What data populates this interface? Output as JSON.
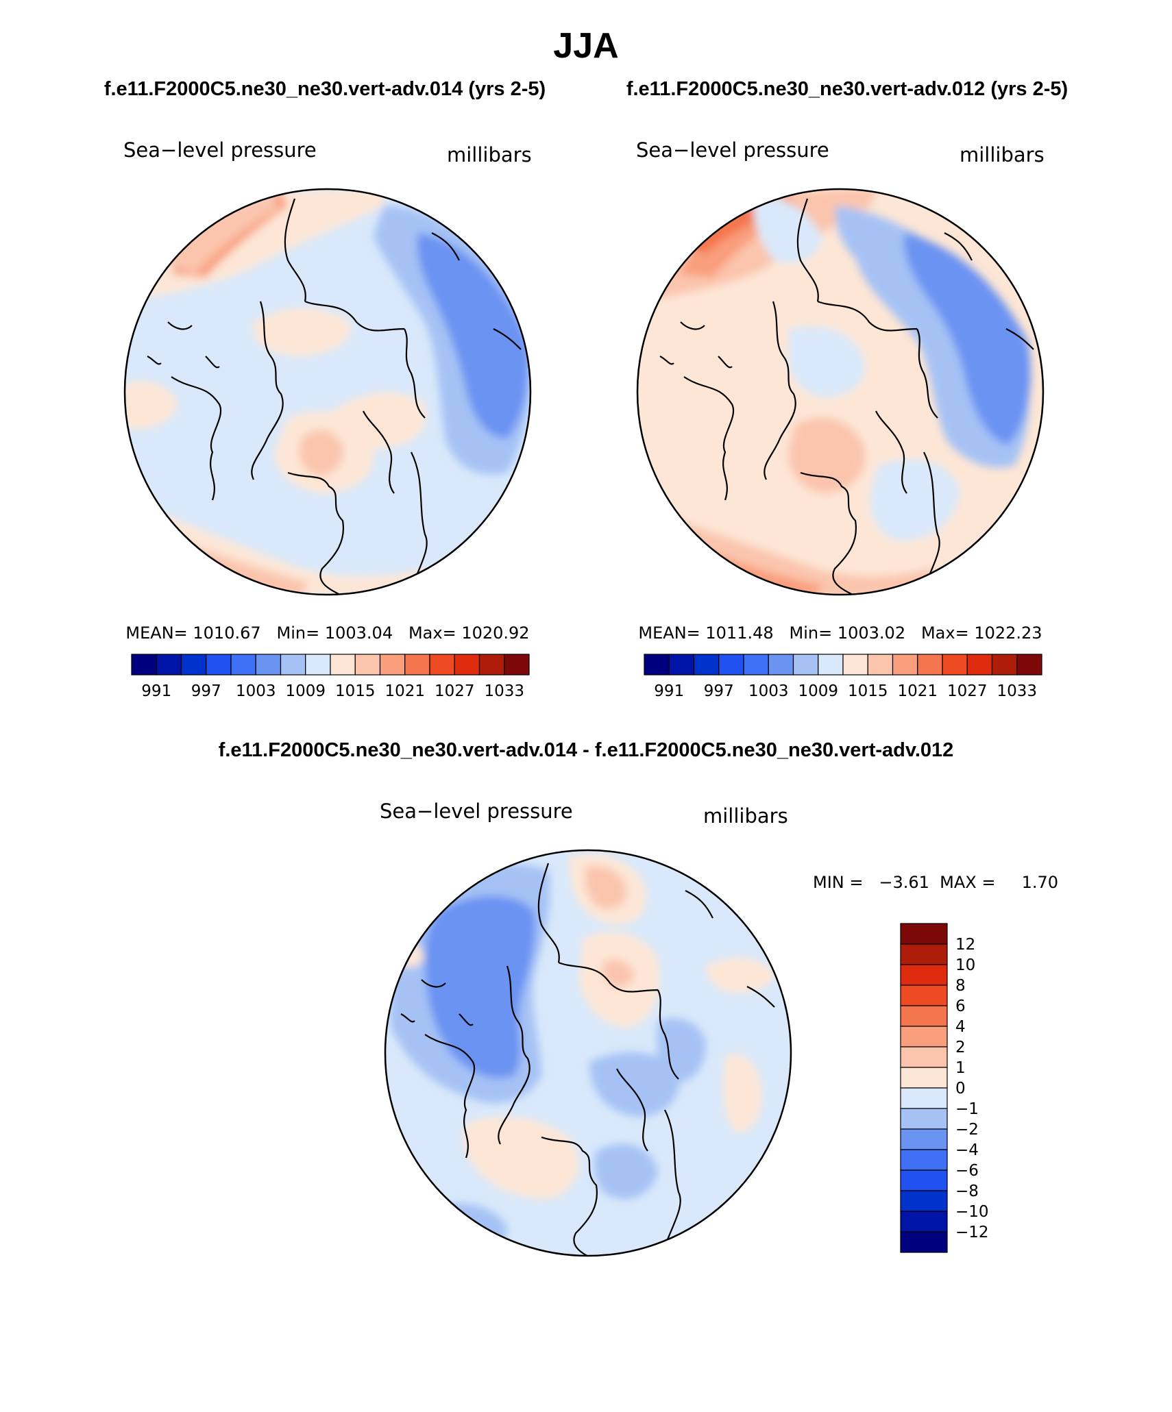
{
  "header": {
    "title": "JJA",
    "left_case": "f.e11.F2000C5.ne30_ne30.vert-adv.014 (yrs 2-5)",
    "right_case": "f.e11.F2000C5.ne30_ne30.vert-adv.012 (yrs 2-5)",
    "diff_title": "f.e11.F2000C5.ne30_ne30.vert-adv.014 - f.e11.F2000C5.ne30_ne30.vert-adv.012"
  },
  "panels": {
    "left": {
      "variable": "Sea−level pressure",
      "units": "millibars",
      "stats": "MEAN= 1010.67   Min= 1003.04   Max= 1020.92"
    },
    "right": {
      "variable": "Sea−level pressure",
      "units": "millibars",
      "stats": "MEAN= 1011.48   Min= 1003.02   Max= 1022.23"
    },
    "diff": {
      "variable": "Sea−level pressure",
      "units": "millibars",
      "minmax": "MIN =   −3.61  MAX =     1.70"
    }
  },
  "colors": {
    "abs_palette": [
      "#00007f",
      "#0014a8",
      "#0033cc",
      "#1f52f0",
      "#3f70f5",
      "#6b93f2",
      "#a6c2f5",
      "#d9e9fb",
      "#fde6d6",
      "#fbc5ad",
      "#f99f7d",
      "#f4764e",
      "#ee4b24",
      "#de2a0d",
      "#ae1c0a",
      "#7c0808"
    ],
    "diff_palette": [
      "#7c0808",
      "#ae1c0a",
      "#de2a0d",
      "#ee4b24",
      "#f4764e",
      "#f99f7d",
      "#fbc5ad",
      "#fde6d6",
      "#d9e9fb",
      "#a6c2f5",
      "#6b93f2",
      "#3f70f5",
      "#1f52f0",
      "#0033cc",
      "#0014a8",
      "#00007f"
    ]
  },
  "chart_data": [
    {
      "type": "heatmap",
      "projection": "north polar stereographic",
      "title": "Sea−level pressure",
      "units": "millibars",
      "case": "f.e11.F2000C5.ne30_ne30.vert-adv.014 (yrs 2-5)",
      "mean": 1010.67,
      "min": 1003.04,
      "max": 1020.92,
      "colorbar_labels": [
        "991",
        "997",
        "1003",
        "1009",
        "1015",
        "1021",
        "1027",
        "1033"
      ],
      "colorbar_levels": [
        991,
        994,
        997,
        1000,
        1003,
        1006,
        1009,
        1012,
        1015,
        1018,
        1021,
        1024,
        1027,
        1030,
        1033
      ]
    },
    {
      "type": "heatmap",
      "projection": "north polar stereographic",
      "title": "Sea−level pressure",
      "units": "millibars",
      "case": "f.e11.F2000C5.ne30_ne30.vert-adv.012 (yrs 2-5)",
      "mean": 1011.48,
      "min": 1003.02,
      "max": 1022.23,
      "colorbar_labels": [
        "991",
        "997",
        "1003",
        "1009",
        "1015",
        "1021",
        "1027",
        "1033"
      ],
      "colorbar_levels": [
        991,
        994,
        997,
        1000,
        1003,
        1006,
        1009,
        1012,
        1015,
        1018,
        1021,
        1024,
        1027,
        1030,
        1033
      ]
    },
    {
      "type": "heatmap",
      "projection": "north polar stereographic",
      "title": "Sea−level pressure",
      "units": "millibars",
      "case": "f.e11.F2000C5.ne30_ne30.vert-adv.014 - f.e11.F2000C5.ne30_ne30.vert-adv.012",
      "min": -3.61,
      "max": 1.7,
      "colorbar_labels": [
        "12",
        "10",
        "8",
        "6",
        "4",
        "2",
        "1",
        "0",
        "−1",
        "−2",
        "−4",
        "−6",
        "−8",
        "−10",
        "−12"
      ],
      "colorbar_levels": [
        12,
        10,
        8,
        6,
        4,
        2,
        1,
        0,
        -1,
        -2,
        -4,
        -6,
        -8,
        -10,
        -12
      ]
    }
  ]
}
